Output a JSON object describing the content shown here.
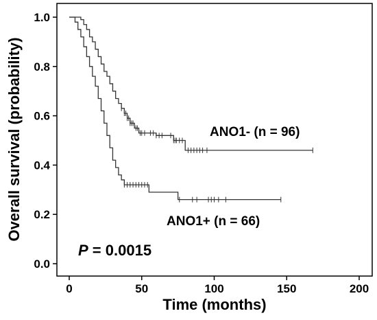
{
  "chart_data": {
    "type": "line",
    "subtype": "kaplan-meier",
    "xlabel": "Time (months)",
    "ylabel": "Overall survival (probability)",
    "xlim": [
      0,
      200
    ],
    "ylim": [
      0,
      1.0
    ],
    "x_ticks": [
      0,
      50,
      100,
      150,
      200
    ],
    "y_ticks": [
      "0.0",
      "0.2",
      "0.4",
      "0.6",
      "0.8",
      "1.0"
    ],
    "grid": false,
    "annotation": {
      "italic": "P",
      "text": " = 0.0015"
    },
    "series": [
      {
        "name": "ANO1- (n = 96)",
        "color": "#333333",
        "steps": [
          [
            0,
            1.0
          ],
          [
            8,
            0.99
          ],
          [
            10,
            0.97
          ],
          [
            12,
            0.95
          ],
          [
            14,
            0.92
          ],
          [
            16,
            0.9
          ],
          [
            18,
            0.87
          ],
          [
            20,
            0.84
          ],
          [
            22,
            0.81
          ],
          [
            24,
            0.78
          ],
          [
            26,
            0.76
          ],
          [
            28,
            0.73
          ],
          [
            30,
            0.7
          ],
          [
            32,
            0.67
          ],
          [
            34,
            0.65
          ],
          [
            36,
            0.63
          ],
          [
            38,
            0.61
          ],
          [
            40,
            0.59
          ],
          [
            42,
            0.57
          ],
          [
            45,
            0.55
          ],
          [
            48,
            0.53
          ],
          [
            60,
            0.52
          ],
          [
            72,
            0.5
          ],
          [
            80,
            0.46
          ]
        ],
        "end_x": 168,
        "censor_times": [
          36,
          38,
          39,
          40,
          41,
          42,
          43,
          44,
          46,
          47,
          49,
          50,
          52,
          56,
          58,
          60,
          62,
          64,
          70,
          72,
          73,
          74,
          76,
          78,
          82,
          84,
          86,
          88,
          90,
          92,
          95,
          168
        ]
      },
      {
        "name": "ANO1+ (n = 66)",
        "color": "#333333",
        "steps": [
          [
            0,
            1.0
          ],
          [
            4,
            0.98
          ],
          [
            6,
            0.95
          ],
          [
            8,
            0.92
          ],
          [
            10,
            0.88
          ],
          [
            12,
            0.84
          ],
          [
            14,
            0.8
          ],
          [
            16,
            0.76
          ],
          [
            18,
            0.72
          ],
          [
            20,
            0.67
          ],
          [
            22,
            0.62
          ],
          [
            24,
            0.57
          ],
          [
            26,
            0.52
          ],
          [
            28,
            0.47
          ],
          [
            30,
            0.42
          ],
          [
            32,
            0.39
          ],
          [
            34,
            0.36
          ],
          [
            36,
            0.34
          ],
          [
            38,
            0.32
          ],
          [
            55,
            0.29
          ],
          [
            75,
            0.26
          ]
        ],
        "end_x": 146,
        "censor_times": [
          38,
          40,
          42,
          44,
          46,
          48,
          50,
          52,
          54,
          76,
          85,
          88,
          96,
          98,
          100,
          103,
          108,
          146
        ]
      }
    ]
  }
}
